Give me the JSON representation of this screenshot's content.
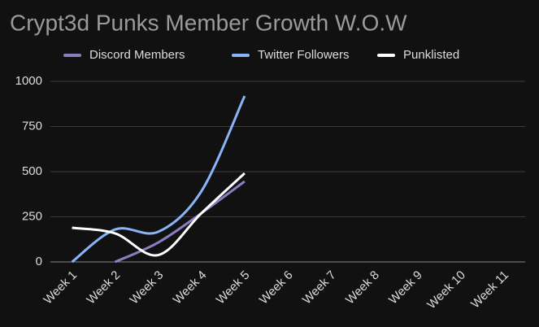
{
  "chart_data": {
    "type": "line",
    "title": "Crypt3d Punks Member Growth W.O.W",
    "categories": [
      "Week 1",
      "Week 2",
      "Week 3",
      "Week 4",
      "Week 5",
      "Week 6",
      "Week 7",
      "Week 8",
      "Week 9",
      "Week 10",
      "Week 11"
    ],
    "series": [
      {
        "name": "Discord Members",
        "color": "#8e7cc3",
        "values": [
          null,
          0,
          108,
          270,
          446,
          null,
          null,
          null,
          null,
          null,
          null
        ]
      },
      {
        "name": "Twitter Followers",
        "color": "#8ab4f8",
        "values": [
          0,
          180,
          167,
          392,
          919,
          null,
          null,
          null,
          null,
          null,
          null
        ]
      },
      {
        "name": "Punklisted",
        "color": "#ffffff",
        "values": [
          189,
          158,
          38,
          270,
          491,
          null,
          null,
          null,
          null,
          null,
          null
        ]
      }
    ],
    "ylim": [
      0,
      1000
    ],
    "yticks": [
      0,
      250,
      500,
      750,
      1000
    ],
    "grid": true,
    "legend": "top",
    "smooth": true
  }
}
